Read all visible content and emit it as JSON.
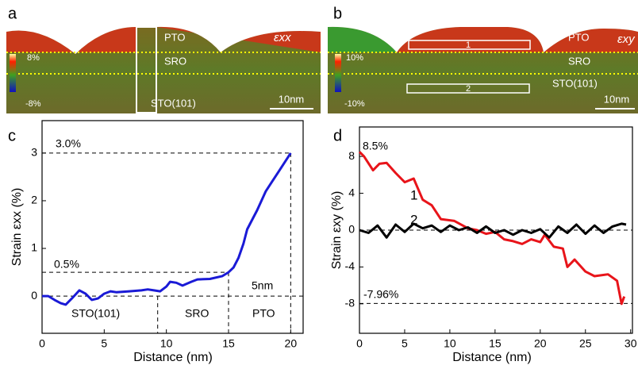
{
  "images": [
    {
      "panel_label": "a",
      "layers": [
        "PTO",
        "SRO",
        "STO(101)"
      ],
      "symbol": "εxx",
      "colorbar_max": "8%",
      "colorbar_min": "-8%",
      "scalebar": "10nm"
    },
    {
      "panel_label": "b",
      "layers": [
        "PTO",
        "SRO",
        "STO(101)"
      ],
      "symbol": "εxy",
      "colorbar_max": "10%",
      "colorbar_min": "-10%",
      "scalebar": "10nm",
      "boxes": [
        "1",
        "2"
      ]
    }
  ],
  "chart_data": [
    {
      "type": "line",
      "panel_label": "c",
      "x_label": "Distance (nm)",
      "y_label": "Strain εxx (%)",
      "xlim": [
        0,
        21
      ],
      "xticks": [
        0,
        5,
        10,
        15,
        20
      ],
      "ylim": [
        -0.78,
        3.68
      ],
      "yticks": [
        0,
        1,
        2,
        3
      ],
      "hlines": [
        3,
        0.5,
        0
      ],
      "vlines": [
        9.3,
        15,
        20
      ],
      "annotations": [
        "3.0%",
        "0.5%",
        "5nm",
        "STO(101)",
        "SRO",
        "PTO"
      ],
      "series": [
        {
          "name": null,
          "color": "#1a1ad6",
          "x": [
            0,
            0.5,
            1,
            1.5,
            1.9,
            2.4,
            3,
            3.5,
            4,
            4.5,
            5,
            5.5,
            6,
            7,
            8,
            8.5,
            9,
            9.5,
            10,
            10.3,
            10.8,
            11.3,
            12,
            12.5,
            13.5,
            14.5,
            15,
            15.4,
            15.8,
            16.2,
            16.5,
            17,
            17.3,
            18,
            18.5,
            19,
            19.5,
            20
          ],
          "values": [
            0,
            0,
            -0.08,
            -0.15,
            -0.18,
            -0.05,
            0.12,
            0.05,
            -0.08,
            -0.05,
            0.05,
            0.1,
            0.08,
            0.1,
            0.12,
            0.14,
            0.12,
            0.1,
            0.2,
            0.3,
            0.28,
            0.22,
            0.3,
            0.35,
            0.36,
            0.42,
            0.5,
            0.6,
            0.8,
            1.1,
            1.4,
            1.65,
            1.8,
            2.2,
            2.4,
            2.6,
            2.8,
            3.0
          ]
        }
      ]
    },
    {
      "type": "line",
      "panel_label": "d",
      "x_label": "Distance (nm)",
      "y_label": "Strain εxy (%)",
      "xlim": [
        0,
        30.2
      ],
      "xticks": [
        0,
        5,
        10,
        15,
        20,
        25,
        30
      ],
      "ylim": [
        -11.2,
        11.2
      ],
      "yticks": [
        -8,
        -4,
        0,
        4,
        8
      ],
      "hlines": [
        0,
        -7.96
      ],
      "vlines": [],
      "annotations": [
        "8.5%",
        "-7.96%"
      ],
      "series": [
        {
          "name": "1",
          "color": "#e8141a",
          "x": [
            0,
            0.5,
            1.5,
            2.2,
            3,
            4,
            5,
            6,
            7,
            8,
            9,
            10.5,
            12,
            13,
            14,
            15,
            16,
            17,
            18,
            19,
            20,
            20.5,
            21.5,
            22.5,
            23,
            23.8,
            25,
            26,
            27.5,
            28.5,
            29,
            29.3
          ],
          "values": [
            8.5,
            8,
            6.5,
            7.2,
            7.3,
            6.2,
            5.2,
            5.6,
            3.3,
            2.7,
            1.2,
            1.0,
            0.2,
            0,
            -0.4,
            -0.2,
            -1,
            -1.2,
            -1.5,
            -1,
            -1.3,
            -0.5,
            -1.8,
            -2,
            -4,
            -3.2,
            -4.5,
            -5,
            -4.8,
            -5.5,
            -8,
            -7.2
          ]
        },
        {
          "name": "2",
          "color": "#000000",
          "x": [
            0,
            1,
            2,
            3,
            4,
            5,
            6,
            7,
            8,
            9,
            10,
            11,
            12,
            13,
            14,
            15,
            16,
            17,
            18,
            19,
            20,
            21,
            22,
            23,
            24,
            25,
            26,
            27,
            28,
            29,
            29.5
          ],
          "values": [
            0,
            -0.3,
            0.5,
            -0.8,
            0.6,
            -0.2,
            0.7,
            0.2,
            0.5,
            -0.2,
            0.5,
            0,
            0.3,
            -0.3,
            0.4,
            -0.3,
            0,
            -0.5,
            0,
            -0.3,
            0.1,
            -0.8,
            0.4,
            -0.3,
            0.6,
            -0.4,
            0.5,
            -0.3,
            0.4,
            0.7,
            0.6
          ]
        }
      ]
    }
  ]
}
